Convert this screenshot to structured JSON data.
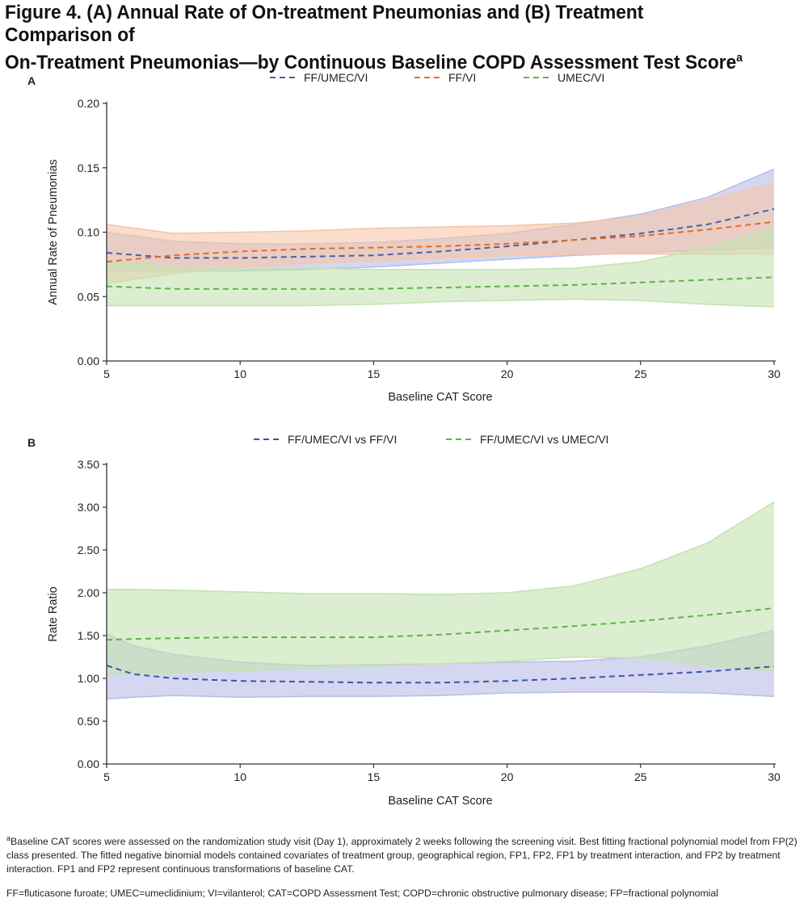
{
  "figure": {
    "title_line1": "Figure 4. (A) Annual Rate of On-treatment Pneumonias and (B) Treatment Comparison of",
    "title_line2": "On-Treatment Pneumonias—by Continuous Baseline COPD Assessment Test Score",
    "title_sup": "a"
  },
  "chart_data": [
    {
      "type": "line",
      "panel_label": "A",
      "xlabel": "Baseline CAT Score",
      "ylabel": "Annual Rate of Pneumonias",
      "xlim": [
        5,
        30
      ],
      "ylim": [
        0,
        0.2
      ],
      "x_ticks": [
        5,
        10,
        15,
        20,
        25,
        30
      ],
      "y_ticks": [
        0,
        0.05,
        0.1,
        0.15,
        0.2
      ],
      "y_tick_labels": [
        "0.00",
        "0.05",
        "0.10",
        "0.15",
        "0.20"
      ],
      "y_decimals": 2,
      "legend_position": "top-center",
      "series": [
        {
          "name": "FF/UMEC/VI",
          "color": "#4a5fa8",
          "band_color": "#b9bde8",
          "x": [
            5,
            7.5,
            10,
            12.5,
            15,
            17.5,
            20,
            22.5,
            25,
            27.5,
            30
          ],
          "y": [
            0.084,
            0.08,
            0.08,
            0.081,
            0.082,
            0.085,
            0.089,
            0.094,
            0.099,
            0.106,
            0.118
          ],
          "lower": [
            0.07,
            0.07,
            0.07,
            0.071,
            0.073,
            0.076,
            0.079,
            0.082,
            0.084,
            0.086,
            0.088
          ],
          "upper": [
            0.1,
            0.093,
            0.091,
            0.091,
            0.092,
            0.095,
            0.099,
            0.106,
            0.114,
            0.127,
            0.149
          ]
        },
        {
          "name": "FF/VI",
          "color": "#e8692a",
          "band_color": "#f6c7a6",
          "x": [
            5,
            7.5,
            10,
            12.5,
            15,
            17.5,
            20,
            22.5,
            25,
            27.5,
            30
          ],
          "y": [
            0.077,
            0.082,
            0.085,
            0.087,
            0.088,
            0.089,
            0.091,
            0.094,
            0.097,
            0.102,
            0.108
          ],
          "lower": [
            0.06,
            0.068,
            0.073,
            0.076,
            0.078,
            0.08,
            0.082,
            0.083,
            0.083,
            0.083,
            0.083
          ],
          "upper": [
            0.106,
            0.099,
            0.1,
            0.101,
            0.103,
            0.104,
            0.105,
            0.107,
            0.112,
            0.125,
            0.138
          ]
        },
        {
          "name": "UMEC/VI",
          "color": "#5cb545",
          "band_color": "#c4e3b1",
          "x": [
            5,
            7.5,
            10,
            12.5,
            15,
            17.5,
            20,
            22.5,
            25,
            27.5,
            30
          ],
          "y": [
            0.058,
            0.056,
            0.056,
            0.056,
            0.056,
            0.057,
            0.058,
            0.059,
            0.061,
            0.063,
            0.065
          ],
          "lower": [
            0.043,
            0.043,
            0.043,
            0.043,
            0.044,
            0.046,
            0.047,
            0.048,
            0.047,
            0.044,
            0.042
          ],
          "upper": [
            0.078,
            0.073,
            0.072,
            0.072,
            0.071,
            0.071,
            0.071,
            0.072,
            0.077,
            0.088,
            0.104
          ]
        }
      ]
    },
    {
      "type": "line",
      "panel_label": "B",
      "xlabel": "Baseline CAT Score",
      "ylabel": "Rate Ratio",
      "xlim": [
        5,
        30
      ],
      "ylim": [
        0,
        3.5
      ],
      "x_ticks": [
        5,
        10,
        15,
        20,
        25,
        30
      ],
      "y_ticks": [
        0,
        0.5,
        1,
        1.5,
        2,
        2.5,
        3,
        3.5
      ],
      "y_tick_labels": [
        "0.00",
        "0.50",
        "1.00",
        "1.50",
        "2.00",
        "2.50",
        "3.00",
        "3.50"
      ],
      "y_decimals": 2,
      "legend_position": "top-center",
      "series": [
        {
          "name": "FF/UMEC/VI vs FF/VI",
          "color": "#3a56a5",
          "band_color": "#b9bde8",
          "x": [
            5,
            6,
            7.5,
            10,
            12.5,
            15,
            17.5,
            20,
            22.5,
            25,
            27.5,
            30
          ],
          "y": [
            1.15,
            1.05,
            1.0,
            0.97,
            0.96,
            0.95,
            0.95,
            0.97,
            1.0,
            1.04,
            1.08,
            1.14
          ],
          "lower": [
            0.76,
            0.78,
            0.8,
            0.78,
            0.79,
            0.79,
            0.8,
            0.83,
            0.84,
            0.84,
            0.83,
            0.79
          ],
          "upper": [
            1.52,
            1.38,
            1.28,
            1.19,
            1.15,
            1.16,
            1.17,
            1.19,
            1.2,
            1.25,
            1.38,
            1.56
          ]
        },
        {
          "name": "FF/UMEC/VI vs UMEC/VI",
          "color": "#5cb545",
          "band_color": "#c4e3b1",
          "x": [
            5,
            6,
            7.5,
            10,
            12.5,
            15,
            17.5,
            20,
            22.5,
            25,
            27.5,
            30
          ],
          "y": [
            1.45,
            1.46,
            1.47,
            1.48,
            1.48,
            1.48,
            1.51,
            1.56,
            1.61,
            1.67,
            1.74,
            1.82
          ],
          "lower": [
            1.05,
            1.06,
            1.07,
            1.09,
            1.12,
            1.14,
            1.17,
            1.2,
            1.25,
            1.24,
            1.15,
            1.08
          ],
          "upper": [
            2.04,
            2.04,
            2.03,
            2.01,
            1.99,
            1.99,
            1.98,
            2.0,
            2.08,
            2.28,
            2.58,
            3.06
          ]
        }
      ]
    }
  ],
  "footnotes": {
    "note_sup": "a",
    "note_text": "Baseline CAT scores were assessed on the randomization study visit (Day 1), approximately 2 weeks following the screening visit. Best fitting fractional polynomial model from FP(2) class presented. The fitted negative binomial models contained covariates of treatment group, geographical region, FP1, FP2, FP1 by treatment interaction, and FP2 by treatment interaction. FP1 and FP2 represent continuous transformations of baseline CAT.",
    "abbreviations": "FF=fluticasone furoate; UMEC=umeclidinium; VI=vilanterol; CAT=COPD Assessment Test; COPD=chronic obstructive pulmonary disease; FP=fractional polynomial"
  }
}
